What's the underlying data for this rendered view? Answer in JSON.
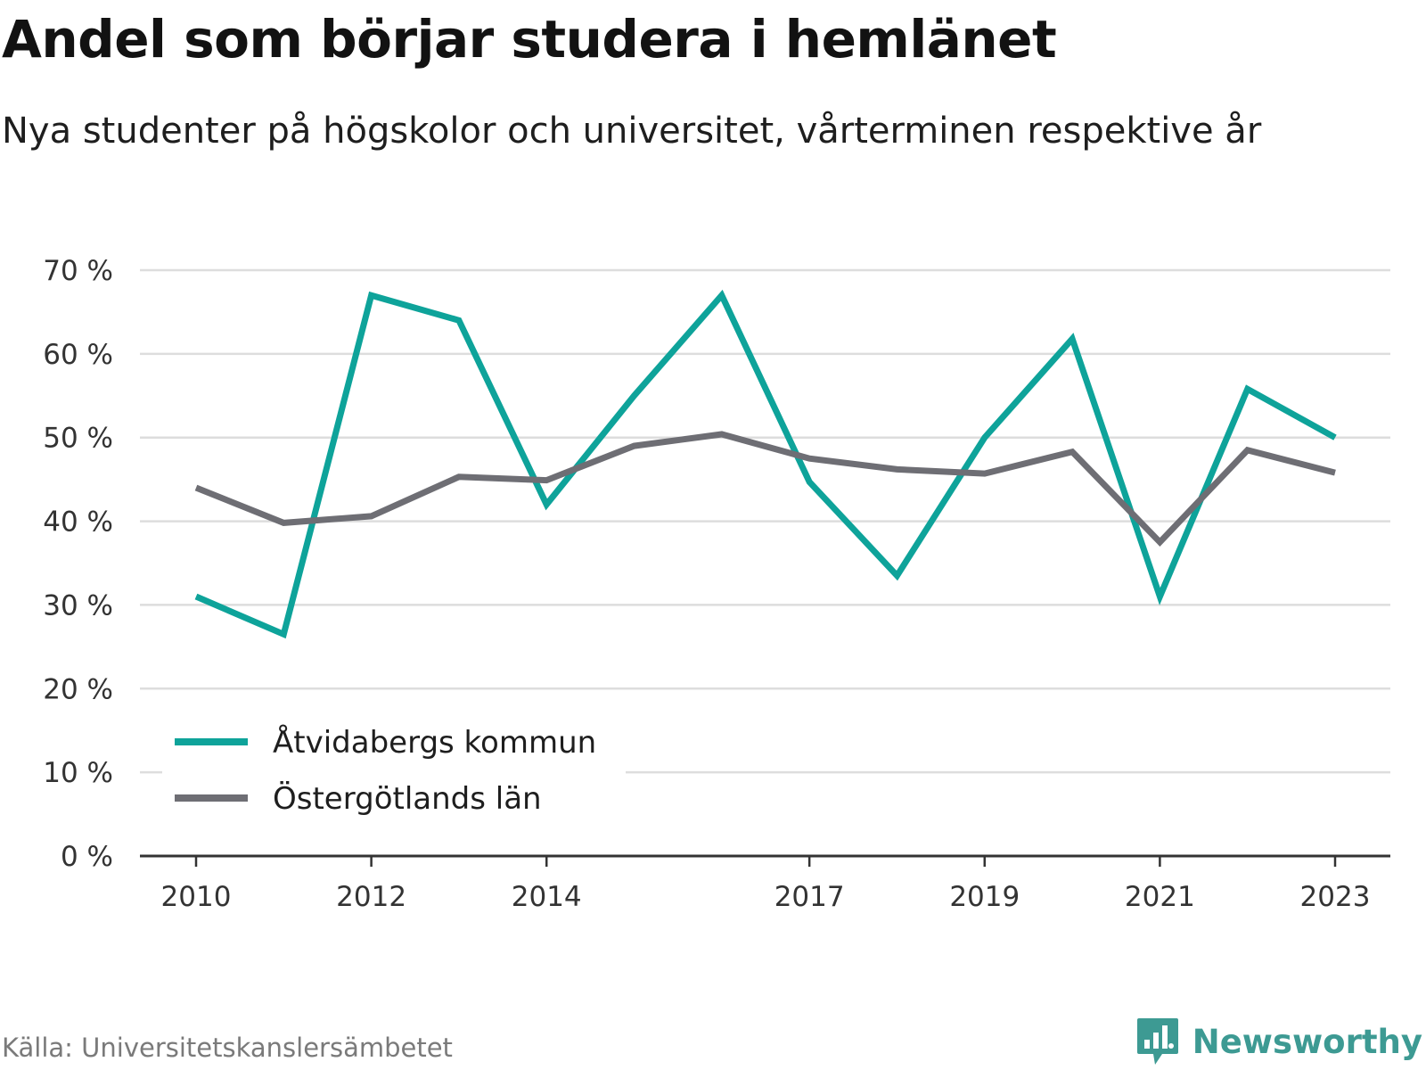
{
  "header": {
    "title": "Andel som börjar studera i hemlänet",
    "subtitle": "Nya studenter på högskolor och universitet, vårterminen respektive år"
  },
  "footer": {
    "source": "Källa: Universitetskanslersämbetet",
    "brand": "Newsworthy",
    "brand_icon": "bar-chart-speech-bubble-icon",
    "brand_color": "#3d9a93"
  },
  "chart_data": {
    "type": "line",
    "title": "Andel som börjar studera i hemlänet",
    "subtitle": "Nya studenter på högskolor och universitet, vårterminen respektive år",
    "xlabel": "",
    "ylabel": "",
    "x": [
      2010,
      2011,
      2012,
      2013,
      2014,
      2015,
      2016,
      2017,
      2018,
      2019,
      2020,
      2021,
      2022,
      2023
    ],
    "x_tick_labels": [
      "2010",
      "2012",
      "2014",
      "2017",
      "2019",
      "2021",
      "2023"
    ],
    "y_tick_labels": [
      "0 %",
      "10 %",
      "20 %",
      "30 %",
      "40 %",
      "50 %",
      "60 %",
      "70 %"
    ],
    "ylim": [
      0,
      70
    ],
    "grid": true,
    "legend_position": "bottom-left",
    "series": [
      {
        "name": "Åtvidabergs kommun",
        "color": "#0ea39a",
        "values": [
          31,
          26.5,
          67,
          64,
          42,
          55,
          67,
          44.7,
          33.5,
          50,
          61.8,
          31,
          55.8,
          50
        ]
      },
      {
        "name": "Östergötlands län",
        "color": "#6e6e74",
        "values": [
          44,
          39.8,
          40.6,
          45.3,
          44.9,
          49,
          50.4,
          47.5,
          46.2,
          45.7,
          48.3,
          37.5,
          48.5,
          45.8
        ]
      }
    ]
  }
}
